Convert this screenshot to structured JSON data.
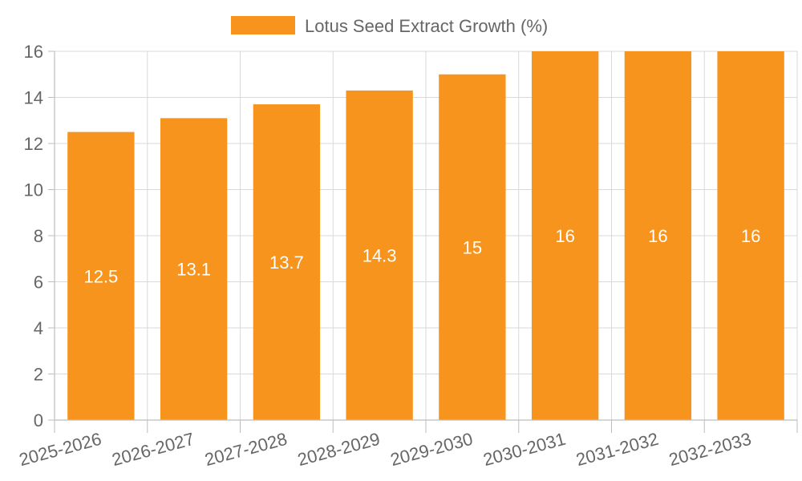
{
  "chart_data": {
    "type": "bar",
    "categories": [
      "2025-2026",
      "2026-2027",
      "2027-2028",
      "2028-2029",
      "2029-2030",
      "2030-2031",
      "2031-2032",
      "2032-2033"
    ],
    "series": [
      {
        "name": "Lotus Seed Extract Growth (%)",
        "values": [
          12.5,
          13.1,
          13.7,
          14.3,
          15,
          16,
          16,
          16
        ],
        "color": "#f7941d"
      }
    ],
    "title": "",
    "xlabel": "",
    "ylabel": "",
    "ylim": [
      0,
      16
    ],
    "yticks": [
      0,
      2,
      4,
      6,
      8,
      10,
      12,
      14,
      16
    ],
    "grid": true,
    "legend_position": "top-center",
    "data_labels": [
      "12.5",
      "13.1",
      "13.7",
      "14.3",
      "15",
      "16",
      "16",
      "16"
    ]
  }
}
